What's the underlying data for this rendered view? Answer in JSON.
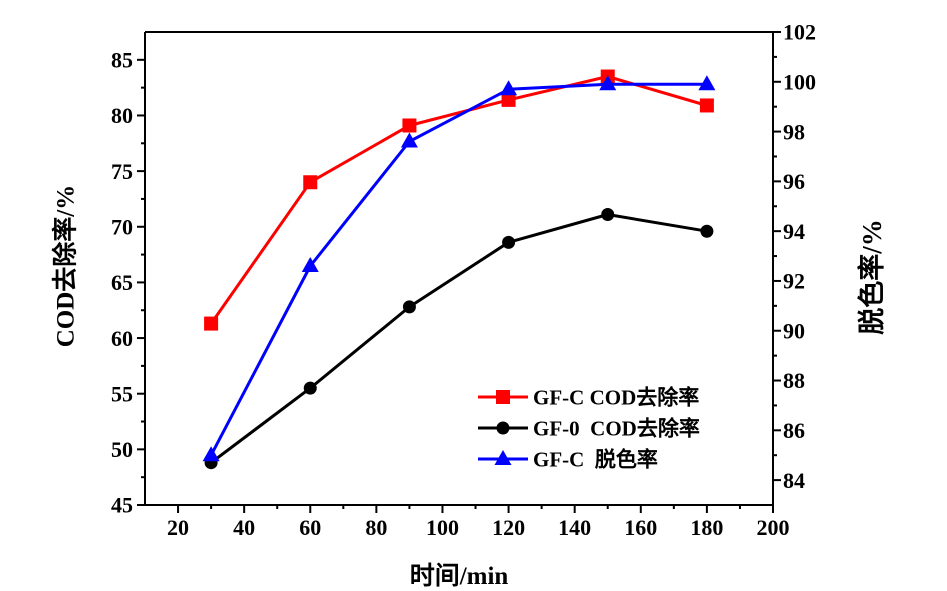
{
  "chart_data": {
    "type": "line",
    "x": [
      30,
      60,
      90,
      120,
      150,
      180
    ],
    "xlabel": "时间/min",
    "ylabel": "COD去除率/%",
    "y2label": "脱色率/%",
    "xlim": [
      10,
      200
    ],
    "ylim": [
      45,
      87.5
    ],
    "y2lim": [
      83,
      102
    ],
    "xticks": [
      20,
      40,
      60,
      80,
      100,
      120,
      140,
      160,
      180,
      200
    ],
    "yticks": [
      45,
      50,
      55,
      60,
      65,
      70,
      75,
      80,
      85
    ],
    "y2ticks": [
      84,
      86,
      88,
      90,
      92,
      94,
      96,
      98,
      100,
      102
    ],
    "grid": false,
    "legend": "bottom-right",
    "series": [
      {
        "name": "GF-C COD去除率",
        "axis": "left",
        "color": "#ff0000",
        "marker": "square",
        "values": [
          61.3,
          74.0,
          79.1,
          81.4,
          83.5,
          80.9
        ]
      },
      {
        "name": "GF-0  COD去除率",
        "axis": "left",
        "color": "#000000",
        "marker": "circle",
        "values": [
          48.8,
          55.5,
          62.8,
          68.6,
          71.1,
          69.6
        ]
      },
      {
        "name": "GF-C  脱色率",
        "axis": "right",
        "color": "#0000ff",
        "marker": "triangle",
        "values": [
          85.0,
          92.6,
          97.6,
          99.7,
          99.9,
          99.9
        ]
      }
    ]
  }
}
